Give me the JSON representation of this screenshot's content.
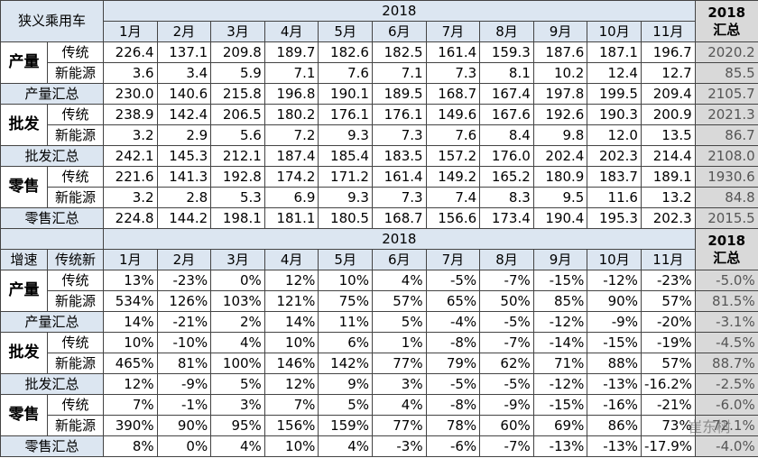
{
  "top": {
    "corner": "狭义乘用车",
    "year": "2018",
    "summary_year": "2018",
    "summary_label": "汇总",
    "months": [
      "1月",
      "2月",
      "3月",
      "4月",
      "5月",
      "6月",
      "7月",
      "8月",
      "9月",
      "10月",
      "11月"
    ],
    "groups": [
      {
        "name": "产量",
        "rows": [
          {
            "label": "传统",
            "values": [
              "226.4",
              "137.1",
              "209.8",
              "189.7",
              "182.6",
              "182.5",
              "161.4",
              "159.3",
              "187.6",
              "187.1",
              "196.7"
            ],
            "total": "2020.2"
          },
          {
            "label": "新能源",
            "values": [
              "3.6",
              "3.4",
              "5.9",
              "7.1",
              "7.6",
              "7.1",
              "7.3",
              "8.1",
              "10.2",
              "12.4",
              "12.7"
            ],
            "total": "85.5"
          }
        ],
        "subtotal": {
          "label": "产量汇总",
          "values": [
            "230.0",
            "140.6",
            "215.8",
            "196.8",
            "190.1",
            "189.5",
            "168.7",
            "167.4",
            "197.8",
            "199.5",
            "209.4"
          ],
          "total": "2105.7"
        }
      },
      {
        "name": "批发",
        "rows": [
          {
            "label": "传统",
            "values": [
              "238.9",
              "142.4",
              "206.5",
              "180.2",
              "176.1",
              "176.1",
              "149.6",
              "167.6",
              "192.6",
              "190.3",
              "200.9"
            ],
            "total": "2021.3"
          },
          {
            "label": "新能源",
            "values": [
              "3.2",
              "2.9",
              "5.6",
              "7.2",
              "9.3",
              "7.3",
              "7.6",
              "8.4",
              "9.8",
              "12.0",
              "13.5"
            ],
            "total": "86.7"
          }
        ],
        "subtotal": {
          "label": "批发汇总",
          "values": [
            "242.1",
            "145.3",
            "212.1",
            "187.4",
            "185.4",
            "183.5",
            "157.2",
            "176.0",
            "202.4",
            "202.3",
            "214.4"
          ],
          "total": "2108.0"
        }
      },
      {
        "name": "零售",
        "rows": [
          {
            "label": "传统",
            "values": [
              "221.6",
              "141.3",
              "192.8",
              "174.2",
              "171.2",
              "161.4",
              "149.2",
              "165.2",
              "180.9",
              "183.7",
              "189.1"
            ],
            "total": "1930.6"
          },
          {
            "label": "新能源",
            "values": [
              "3.2",
              "2.8",
              "5.3",
              "6.9",
              "9.3",
              "7.3",
              "7.4",
              "8.3",
              "9.5",
              "11.6",
              "13.2"
            ],
            "total": "84.8"
          }
        ],
        "subtotal": {
          "label": "零售汇总",
          "values": [
            "224.8",
            "144.2",
            "198.1",
            "181.1",
            "180.5",
            "168.7",
            "156.6",
            "173.4",
            "190.4",
            "195.3",
            "202.3"
          ],
          "total": "2015.5"
        }
      }
    ]
  },
  "bottom": {
    "year": "2018",
    "summary_year": "2018",
    "summary_label": "汇总",
    "corner_left": "增速",
    "corner_right": "传统新",
    "months": [
      "1月",
      "2月",
      "3月",
      "4月",
      "5月",
      "6月",
      "7月",
      "8月",
      "9月",
      "10月",
      "11月"
    ],
    "groups": [
      {
        "name": "产量",
        "rows": [
          {
            "label": "传统",
            "values": [
              "13%",
              "-23%",
              "0%",
              "12%",
              "10%",
              "4%",
              "-5%",
              "-7%",
              "-15%",
              "-12%",
              "-23%"
            ],
            "total": "-5.0%"
          },
          {
            "label": "新能源",
            "values": [
              "534%",
              "126%",
              "103%",
              "121%",
              "75%",
              "57%",
              "65%",
              "50%",
              "85%",
              "90%",
              "57%"
            ],
            "total": "81.5%"
          }
        ],
        "subtotal": {
          "label": "产量汇总",
          "values": [
            "14%",
            "-21%",
            "2%",
            "14%",
            "11%",
            "5%",
            "-4%",
            "-5%",
            "-12%",
            "-9%",
            "-20%"
          ],
          "total": "-3.1%"
        }
      },
      {
        "name": "批发",
        "rows": [
          {
            "label": "传统",
            "values": [
              "10%",
              "-10%",
              "4%",
              "10%",
              "6%",
              "1%",
              "-8%",
              "-7%",
              "-14%",
              "-15%",
              "-19%"
            ],
            "total": "-4.5%"
          },
          {
            "label": "新能源",
            "values": [
              "465%",
              "81%",
              "100%",
              "146%",
              "142%",
              "77%",
              "79%",
              "62%",
              "71%",
              "88%",
              "57%"
            ],
            "total": "88.7%"
          }
        ],
        "subtotal": {
          "label": "批发汇总",
          "values": [
            "12%",
            "-9%",
            "5%",
            "12%",
            "9%",
            "3%",
            "-5%",
            "-5%",
            "-12%",
            "-13%",
            "-16.2%"
          ],
          "total": "-2.5%"
        }
      },
      {
        "name": "零售",
        "rows": [
          {
            "label": "传统",
            "values": [
              "7%",
              "-1%",
              "3%",
              "7%",
              "5%",
              "4%",
              "-8%",
              "-9%",
              "-15%",
              "-16%",
              "-21%"
            ],
            "total": "-6.0%"
          },
          {
            "label": "新能源",
            "values": [
              "390%",
              "90%",
              "95%",
              "156%",
              "159%",
              "77%",
              "78%",
              "60%",
              "69%",
              "86%",
              "73%"
            ],
            "total": "72.1%"
          }
        ],
        "subtotal": {
          "label": "零售汇总",
          "values": [
            "8%",
            "0%",
            "4%",
            "10%",
            "4%",
            "-3%",
            "-6%",
            "-7%",
            "-13%",
            "-13%",
            "-17.9%"
          ],
          "total": "-4.0%"
        }
      }
    ]
  },
  "watermark": "崔东树"
}
